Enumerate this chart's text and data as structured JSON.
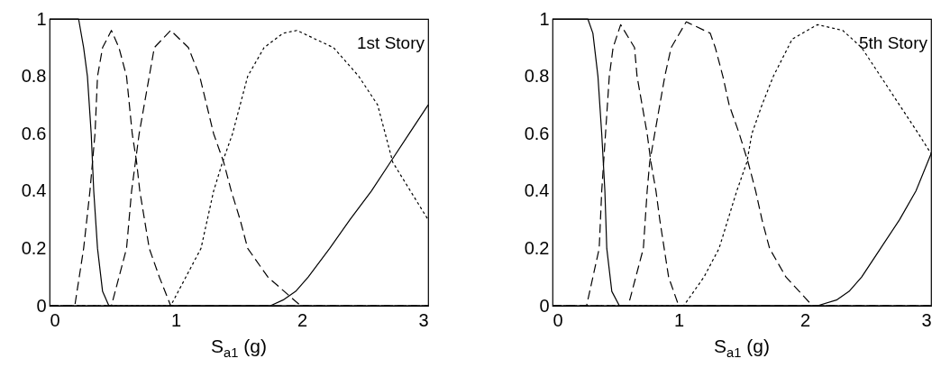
{
  "chart_data": [
    {
      "type": "line",
      "xlabel": "S$_{a1}$ (g)",
      "annotations": [
        "1st Story"
      ],
      "xlim": [
        0,
        3
      ],
      "xticks": [
        0,
        1,
        2,
        3
      ],
      "ylim": [
        0,
        1
      ],
      "yticks": [
        0,
        0.2,
        0.4,
        0.6,
        0.8,
        1
      ],
      "grid": false,
      "marker": "none",
      "series": [
        {
          "color": "#000000",
          "line_style": "solid",
          "x": [
            0,
            0.23,
            0.27,
            0.3,
            0.33,
            0.35,
            0.38,
            0.42,
            0.47,
            3
          ],
          "values": [
            1,
            1,
            0.9,
            0.8,
            0.6,
            0.4,
            0.2,
            0.05,
            0,
            0
          ]
        },
        {
          "color": "#000000",
          "line_style": "dashed",
          "x": [
            0,
            0.2,
            0.27,
            0.32,
            0.36,
            0.38,
            0.42,
            0.49,
            0.55,
            0.61,
            0.655,
            0.69,
            0.715,
            0.79,
            0.87,
            0.96,
            3
          ],
          "values": [
            0,
            0,
            0.2,
            0.4,
            0.6,
            0.8,
            0.9,
            0.96,
            0.9,
            0.8,
            0.6,
            0.5,
            0.4,
            0.2,
            0.1,
            0,
            0
          ]
        },
        {
          "color": "#000000",
          "line_style": "dashed",
          "x": [
            0,
            0.49,
            0.61,
            0.65,
            0.71,
            0.79,
            0.83,
            0.96,
            1.1,
            1.19,
            1.3,
            1.38,
            1.44,
            1.51,
            1.57,
            1.73,
            1.99,
            3
          ],
          "values": [
            0,
            0,
            0.2,
            0.4,
            0.6,
            0.8,
            0.9,
            0.96,
            0.9,
            0.8,
            0.6,
            0.5,
            0.4,
            0.3,
            0.2,
            0.1,
            0,
            0
          ]
        },
        {
          "color": "#000000",
          "line_style": "dotted",
          "x": [
            0,
            0.96,
            1.08,
            1.2,
            1.3,
            1.37,
            1.45,
            1.57,
            1.7,
            1.85,
            1.96,
            2.25,
            2.45,
            2.6,
            2.72,
            3
          ],
          "values": [
            0,
            0,
            0.1,
            0.2,
            0.4,
            0.5,
            0.6,
            0.8,
            0.9,
            0.95,
            0.96,
            0.9,
            0.8,
            0.7,
            0.5,
            0.3
          ]
        },
        {
          "color": "#000000",
          "line_style": "solid",
          "x": [
            0,
            1.75,
            1.85,
            1.95,
            2.05,
            2.22,
            2.38,
            2.55,
            2.7,
            2.85,
            3
          ],
          "values": [
            0,
            0,
            0.02,
            0.05,
            0.1,
            0.2,
            0.3,
            0.4,
            0.5,
            0.6,
            0.7
          ]
        }
      ]
    },
    {
      "type": "line",
      "xlabel": "S$_{a1}$ (g)",
      "annotations": [
        "5th Story"
      ],
      "xlim": [
        0,
        3
      ],
      "xticks": [
        0,
        1,
        2,
        3
      ],
      "ylim": [
        0,
        1
      ],
      "yticks": [
        0,
        0.2,
        0.4,
        0.6,
        0.8,
        1
      ],
      "grid": false,
      "marker": "none",
      "series": [
        {
          "color": "#000000",
          "line_style": "solid",
          "x": [
            0,
            0.28,
            0.32,
            0.36,
            0.39,
            0.415,
            0.43,
            0.47,
            0.53,
            3
          ],
          "values": [
            1,
            1,
            0.95,
            0.8,
            0.6,
            0.4,
            0.2,
            0.05,
            0,
            0
          ]
        },
        {
          "color": "#000000",
          "line_style": "dashed",
          "x": [
            0,
            0.27,
            0.37,
            0.39,
            0.42,
            0.45,
            0.48,
            0.54,
            0.65,
            0.67,
            0.71,
            0.75,
            0.78,
            0.82,
            0.85,
            0.92,
            1.0,
            3
          ],
          "values": [
            0,
            0,
            0.2,
            0.4,
            0.6,
            0.8,
            0.9,
            0.98,
            0.9,
            0.8,
            0.7,
            0.6,
            0.5,
            0.4,
            0.3,
            0.1,
            0,
            0
          ]
        },
        {
          "color": "#000000",
          "line_style": "dashed",
          "x": [
            0,
            0.6,
            0.72,
            0.75,
            0.77,
            0.81,
            0.85,
            0.89,
            0.94,
            1.06,
            1.25,
            1.29,
            1.35,
            1.4,
            1.48,
            1.55,
            1.61,
            1.66,
            1.72,
            1.85,
            2.06,
            3
          ],
          "values": [
            0,
            0,
            0.2,
            0.4,
            0.5,
            0.6,
            0.7,
            0.8,
            0.9,
            0.99,
            0.95,
            0.9,
            0.8,
            0.7,
            0.6,
            0.5,
            0.4,
            0.3,
            0.2,
            0.1,
            0,
            0
          ]
        },
        {
          "color": "#000000",
          "line_style": "dotted",
          "x": [
            0,
            1.04,
            1.2,
            1.32,
            1.39,
            1.46,
            1.54,
            1.58,
            1.66,
            1.75,
            1.9,
            2.1,
            2.3,
            2.45,
            2.6,
            2.75,
            2.9,
            3
          ],
          "values": [
            0,
            0,
            0.1,
            0.2,
            0.3,
            0.4,
            0.5,
            0.6,
            0.7,
            0.8,
            0.93,
            0.98,
            0.96,
            0.9,
            0.8,
            0.7,
            0.6,
            0.53
          ]
        },
        {
          "color": "#000000",
          "line_style": "solid",
          "x": [
            0,
            2.1,
            2.25,
            2.35,
            2.45,
            2.6,
            2.75,
            2.88,
            3
          ],
          "values": [
            0,
            0,
            0.02,
            0.05,
            0.1,
            0.2,
            0.3,
            0.4,
            0.53
          ]
        }
      ]
    }
  ]
}
